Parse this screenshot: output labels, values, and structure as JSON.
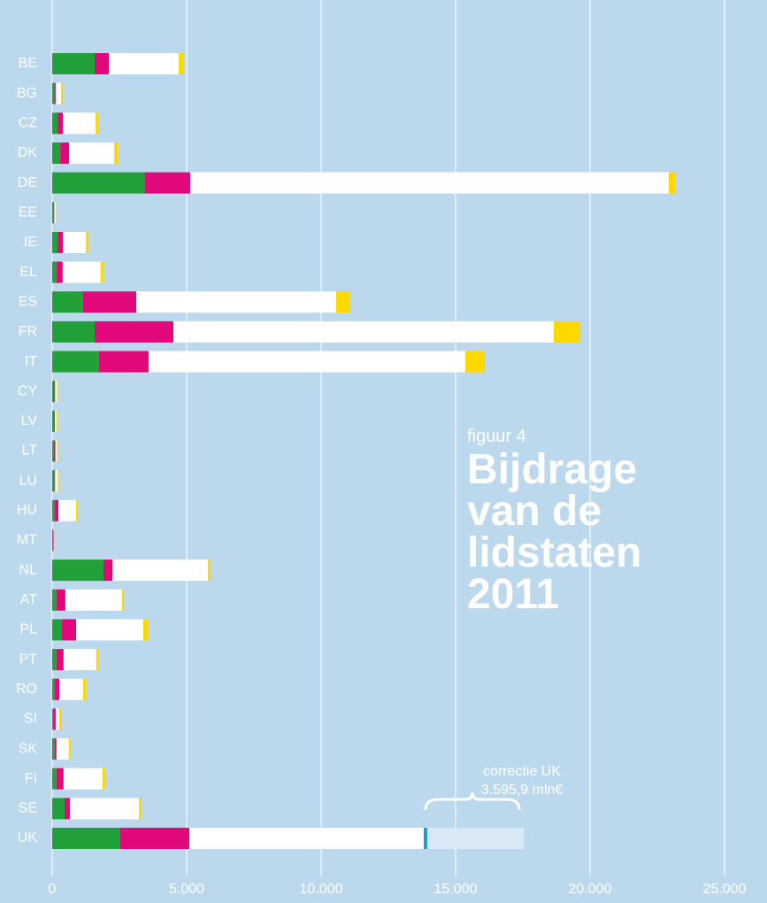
{
  "chart_data": {
    "type": "stacked-barh",
    "title": "Bijdrage van de lidstaten 2011",
    "subtitle": "figuur 4",
    "annotation": [
      "correctie UK",
      "3.595,9 mln€"
    ],
    "categories": [
      "BE",
      "BG",
      "CZ",
      "DK",
      "DE",
      "EE",
      "IE",
      "EL",
      "ES",
      "FR",
      "IT",
      "CY",
      "LV",
      "LT",
      "LU",
      "HU",
      "MT",
      "NL",
      "AT",
      "PL",
      "PT",
      "RO",
      "SI",
      "SK",
      "FI",
      "SE",
      "UK"
    ],
    "series": [
      {
        "color": "#22a03a",
        "values": [
          1579,
          100,
          200,
          300,
          3454,
          60,
          200,
          160,
          1151,
          1579,
          1743,
          80,
          80,
          60,
          90,
          100,
          20,
          1908,
          160,
          362,
          160,
          100,
          40,
          90,
          160,
          460,
          2533
        ]
      },
      {
        "color": "#e0087a",
        "values": [
          526,
          30,
          200,
          330,
          1678,
          20,
          200,
          230,
          1974,
          2928,
          1842,
          30,
          20,
          60,
          20,
          130,
          30,
          330,
          330,
          526,
          263,
          164,
          90,
          70,
          263,
          197,
          2566
        ]
      },
      {
        "color": "#ffffff",
        "values": [
          2599,
          200,
          1217,
          1680,
          17796,
          60,
          855,
          1414,
          7434,
          14145,
          11776,
          70,
          60,
          70,
          100,
          660,
          10,
          3553,
          2105,
          2500,
          1217,
          888,
          130,
          460,
          1447,
          2566,
          8717
        ]
      },
      {
        "color": "#ffd800",
        "values": [
          197,
          60,
          100,
          130,
          230,
          30,
          100,
          100,
          526,
          987,
          724,
          30,
          30,
          50,
          40,
          70,
          10,
          100,
          70,
          197,
          100,
          100,
          90,
          40,
          100,
          100,
          0
        ]
      },
      {
        "color": "#1a9ad6",
        "values": [
          null,
          null,
          null,
          null,
          null,
          null,
          null,
          null,
          null,
          null,
          null,
          null,
          null,
          null,
          null,
          null,
          null,
          null,
          null,
          null,
          null,
          null,
          null,
          null,
          null,
          null,
          130
        ]
      },
      {
        "color": "#d8e8f4",
        "values": [
          null,
          null,
          null,
          null,
          null,
          null,
          null,
          null,
          null,
          null,
          null,
          null,
          null,
          null,
          null,
          null,
          null,
          null,
          null,
          null,
          null,
          null,
          null,
          null,
          null,
          null,
          3595.9
        ]
      }
    ],
    "xlim": [
      0,
      25500
    ],
    "xticks": [
      0,
      {
        "value": 5000,
        "label": "5.000"
      },
      {
        "value": 10000,
        "label": "10.000"
      },
      {
        "value": 15000,
        "label": "15.000"
      },
      {
        "value": 20000,
        "label": "20.000"
      },
      {
        "value": 25000,
        "label": "25.000"
      }
    ],
    "grid": true
  }
}
